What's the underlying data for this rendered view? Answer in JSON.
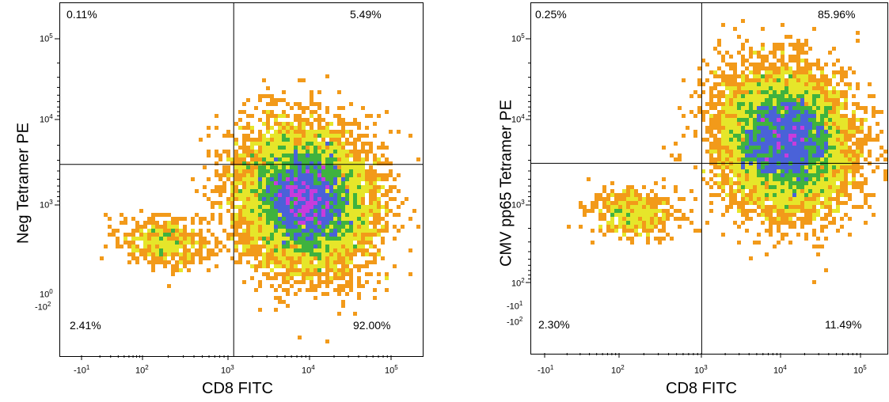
{
  "chart_data": [
    {
      "type": "scatter",
      "subtype": "flow-cytometry-density",
      "xlabel": "CD8 FITC",
      "ylabel": "Neg Tetramer PE",
      "x_scale": "biexponential",
      "y_scale": "biexponential",
      "x_ticks": [
        "-10^1",
        "10^2",
        "10^3",
        "10^4",
        "10^5"
      ],
      "y_ticks": [
        "10^5",
        "10^4",
        "10^3",
        "10^0",
        "-10^2"
      ],
      "quadrants": {
        "upper_left": "0.11%",
        "upper_right": "5.49%",
        "lower_left": "2.41%",
        "lower_right": "92.00%"
      },
      "gate": {
        "x": 700,
        "y": 600
      },
      "populations": [
        {
          "x": 6000,
          "y": 150,
          "spread": "main",
          "weight": 0.92
        },
        {
          "x": 80,
          "y": 20,
          "spread": "small",
          "weight": 0.024
        }
      ],
      "grid": false
    },
    {
      "type": "scatter",
      "subtype": "flow-cytometry-density",
      "xlabel": "CD8 FITC",
      "ylabel": "CMV pp65 Tetramer PE",
      "x_scale": "biexponential",
      "y_scale": "biexponential",
      "x_ticks": [
        "-10^1",
        "10^2",
        "10^3",
        "10^4",
        "10^5"
      ],
      "y_ticks": [
        "10^5",
        "10^4",
        "10^3",
        "10^2",
        "-10^1",
        "-10^2"
      ],
      "quadrants": {
        "upper_left": "0.25%",
        "upper_right": "85.96%",
        "lower_left": "2.30%",
        "lower_right": "11.49%"
      },
      "gate": {
        "x": 700,
        "y": 600
      },
      "populations": [
        {
          "x": 9000,
          "y": 1500,
          "spread": "main",
          "weight": 0.86
        },
        {
          "x": 80,
          "y": 80,
          "spread": "small",
          "weight": 0.023
        }
      ],
      "grid": false
    }
  ],
  "colors": {
    "density_low": "#e0281e",
    "density_midlow": "#f29a1a",
    "density_mid": "#e6e62a",
    "density_midhigh": "#3fb23f",
    "density_high": "#4a62d8",
    "density_peak": "#c83cdc",
    "gate_line": "#000000"
  }
}
